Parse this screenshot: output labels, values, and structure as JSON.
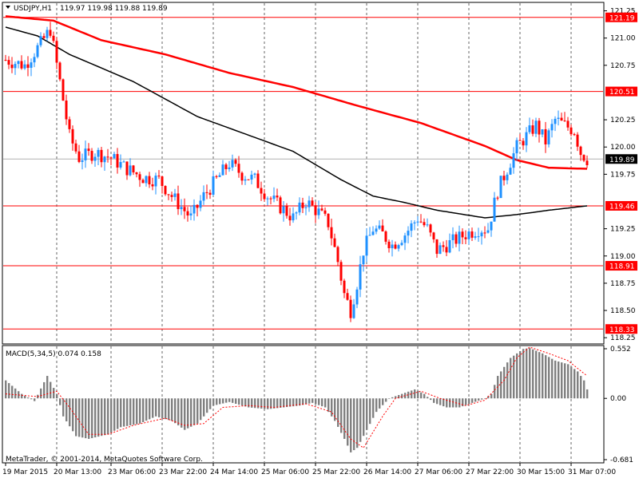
{
  "header": {
    "symbol": "USDJPY,H1",
    "ohlc": "119.97 119.98 119.88 119.89",
    "menu_icon": "triangle-down-icon"
  },
  "price_scale": {
    "ticks": [
      {
        "value": 121.25,
        "label": "121.25"
      },
      {
        "value": 121.0,
        "label": "121.00"
      },
      {
        "value": 120.75,
        "label": "120.75"
      },
      {
        "value": 120.25,
        "label": "120.25"
      },
      {
        "value": 120.0,
        "label": "120.00"
      },
      {
        "value": 119.75,
        "label": "119.75"
      },
      {
        "value": 119.25,
        "label": "119.25"
      },
      {
        "value": 119.0,
        "label": "119.00"
      },
      {
        "value": 118.75,
        "label": "118.75"
      },
      {
        "value": 118.5,
        "label": "118.50"
      },
      {
        "value": 118.25,
        "label": "118.25"
      }
    ],
    "levels": [
      {
        "value": 121.19,
        "label": "121.19"
      },
      {
        "value": 120.51,
        "label": "120.51"
      },
      {
        "value": 119.46,
        "label": "119.46"
      },
      {
        "value": 118.91,
        "label": "118.91"
      },
      {
        "value": 118.33,
        "label": "118.33"
      }
    ],
    "current": {
      "value": 119.89,
      "label": "119.89"
    }
  },
  "time_axis": [
    {
      "bar": 0,
      "label": "19 Mar 2015"
    },
    {
      "bar": 16,
      "label": "20 Mar 13:00"
    },
    {
      "bar": 33,
      "label": "23 Mar 06:00"
    },
    {
      "bar": 49,
      "label": "23 Mar 22:00"
    },
    {
      "bar": 65,
      "label": "24 Mar 14:00"
    },
    {
      "bar": 81,
      "label": "25 Mar 06:00"
    },
    {
      "bar": 97,
      "label": "25 Mar 22:00"
    },
    {
      "bar": 113,
      "label": "26 Mar 14:00"
    },
    {
      "bar": 129,
      "label": "27 Mar 06:00"
    },
    {
      "bar": 145,
      "label": "27 Mar 22:00"
    },
    {
      "bar": 161,
      "label": "30 Mar 15:00"
    },
    {
      "bar": 177,
      "label": "31 Mar 07:00"
    }
  ],
  "indicator": {
    "label": "MACD(5,34,5) 0.074 0.158",
    "ticks": [
      {
        "value": 0.552,
        "label": "0.552"
      },
      {
        "value": 0.0,
        "label": "0.00"
      },
      {
        "value": -0.681,
        "label": "-0.681"
      }
    ]
  },
  "copyright": "MetaTrader, © 2001-2014, MetaQuotes Software Corp.",
  "colors": {
    "bull": "#1e90ff",
    "bear": "#ff0000",
    "level_line": "#ff0000",
    "ma_slow": "#ff0000",
    "ma_fast": "#000000",
    "macd_hist": "#808080",
    "macd_signal": "#ff0000",
    "grid": "#000000"
  },
  "chart_data": {
    "type": "candlestick",
    "price_range": [
      118.2,
      121.32
    ],
    "macd_range": [
      -0.681,
      0.552
    ],
    "moving_averages": [
      {
        "color": "red",
        "points": [
          [
            0,
            121.2
          ],
          [
            15,
            121.16
          ],
          [
            30,
            120.98
          ],
          [
            50,
            120.85
          ],
          [
            70,
            120.68
          ],
          [
            90,
            120.55
          ],
          [
            110,
            120.38
          ],
          [
            130,
            120.22
          ],
          [
            150,
            120.01
          ],
          [
            160,
            119.88
          ],
          [
            170,
            119.81
          ],
          [
            182,
            119.8
          ]
        ]
      },
      {
        "color": "black",
        "points": [
          [
            0,
            121.1
          ],
          [
            10,
            121.02
          ],
          [
            20,
            120.85
          ],
          [
            40,
            120.6
          ],
          [
            60,
            120.28
          ],
          [
            75,
            120.12
          ],
          [
            90,
            119.96
          ],
          [
            105,
            119.7
          ],
          [
            115,
            119.55
          ],
          [
            125,
            119.49
          ],
          [
            135,
            119.42
          ],
          [
            150,
            119.35
          ],
          [
            160,
            119.38
          ],
          [
            170,
            119.42
          ],
          [
            182,
            119.46
          ]
        ]
      }
    ],
    "macd_hist_points": [
      [
        0,
        0.2
      ],
      [
        5,
        0.05
      ],
      [
        9,
        -0.03
      ],
      [
        13,
        0.25
      ],
      [
        16,
        0.05
      ],
      [
        18,
        -0.2
      ],
      [
        22,
        -0.42
      ],
      [
        26,
        -0.45
      ],
      [
        32,
        -0.4
      ],
      [
        36,
        -0.32
      ],
      [
        42,
        -0.28
      ],
      [
        47,
        -0.2
      ],
      [
        52,
        -0.25
      ],
      [
        56,
        -0.35
      ],
      [
        60,
        -0.28
      ],
      [
        65,
        -0.08
      ],
      [
        70,
        -0.04
      ],
      [
        76,
        -0.1
      ],
      [
        82,
        -0.12
      ],
      [
        87,
        -0.1
      ],
      [
        92,
        -0.08
      ],
      [
        96,
        -0.05
      ],
      [
        100,
        -0.1
      ],
      [
        103,
        -0.25
      ],
      [
        106,
        -0.45
      ],
      [
        108,
        -0.6
      ],
      [
        110,
        -0.55
      ],
      [
        113,
        -0.35
      ],
      [
        116,
        -0.15
      ],
      [
        120,
        0.0
      ],
      [
        124,
        0.05
      ],
      [
        128,
        0.1
      ],
      [
        131,
        0.05
      ],
      [
        134,
        -0.05
      ],
      [
        138,
        -0.1
      ],
      [
        142,
        -0.1
      ],
      [
        146,
        -0.05
      ],
      [
        150,
        0.0
      ],
      [
        152,
        0.05
      ],
      [
        154,
        0.25
      ],
      [
        158,
        0.45
      ],
      [
        162,
        0.55
      ],
      [
        164,
        0.56
      ],
      [
        168,
        0.5
      ],
      [
        172,
        0.42
      ],
      [
        176,
        0.38
      ],
      [
        179,
        0.3
      ],
      [
        181,
        0.2
      ],
      [
        182,
        0.1
      ]
    ],
    "macd_signal_points": [
      [
        0,
        0.05
      ],
      [
        10,
        0.02
      ],
      [
        16,
        0.08
      ],
      [
        20,
        -0.1
      ],
      [
        26,
        -0.4
      ],
      [
        32,
        -0.4
      ],
      [
        40,
        -0.3
      ],
      [
        50,
        -0.22
      ],
      [
        56,
        -0.3
      ],
      [
        62,
        -0.28
      ],
      [
        68,
        -0.1
      ],
      [
        76,
        -0.08
      ],
      [
        84,
        -0.1
      ],
      [
        94,
        -0.06
      ],
      [
        102,
        -0.15
      ],
      [
        108,
        -0.45
      ],
      [
        112,
        -0.55
      ],
      [
        118,
        -0.2
      ],
      [
        122,
        0.0
      ],
      [
        130,
        0.08
      ],
      [
        136,
        0.0
      ],
      [
        144,
        -0.08
      ],
      [
        150,
        -0.02
      ],
      [
        156,
        0.2
      ],
      [
        160,
        0.45
      ],
      [
        164,
        0.57
      ],
      [
        170,
        0.5
      ],
      [
        176,
        0.42
      ],
      [
        182,
        0.25
      ]
    ],
    "price_path": [
      [
        0,
        120.8
      ],
      [
        6,
        120.75
      ],
      [
        11,
        120.95
      ],
      [
        14,
        121.08
      ],
      [
        17,
        120.6
      ],
      [
        20,
        120.1
      ],
      [
        23,
        119.9
      ],
      [
        28,
        119.95
      ],
      [
        33,
        119.9
      ],
      [
        38,
        119.8
      ],
      [
        43,
        119.72
      ],
      [
        48,
        119.7
      ],
      [
        52,
        119.55
      ],
      [
        58,
        119.35
      ],
      [
        62,
        119.55
      ],
      [
        66,
        119.7
      ],
      [
        70,
        119.85
      ],
      [
        74,
        119.75
      ],
      [
        78,
        119.7
      ],
      [
        82,
        119.55
      ],
      [
        86,
        119.45
      ],
      [
        90,
        119.35
      ],
      [
        94,
        119.5
      ],
      [
        98,
        119.4
      ],
      [
        101,
        119.3
      ],
      [
        104,
        118.95
      ],
      [
        106,
        118.65
      ],
      [
        108,
        118.5
      ],
      [
        110,
        118.75
      ],
      [
        112,
        119.05
      ],
      [
        115,
        119.25
      ],
      [
        118,
        119.2
      ],
      [
        121,
        119.1
      ],
      [
        125,
        119.2
      ],
      [
        129,
        119.35
      ],
      [
        132,
        119.25
      ],
      [
        135,
        119.05
      ],
      [
        138,
        119.1
      ],
      [
        141,
        119.15
      ],
      [
        144,
        119.2
      ],
      [
        148,
        119.25
      ],
      [
        151,
        119.25
      ],
      [
        154,
        119.6
      ],
      [
        157,
        119.8
      ],
      [
        160,
        120.0
      ],
      [
        163,
        120.1
      ],
      [
        166,
        120.2
      ],
      [
        169,
        120.05
      ],
      [
        172,
        120.25
      ],
      [
        175,
        120.2
      ],
      [
        178,
        120.15
      ],
      [
        180,
        119.95
      ],
      [
        182,
        119.89
      ]
    ]
  }
}
